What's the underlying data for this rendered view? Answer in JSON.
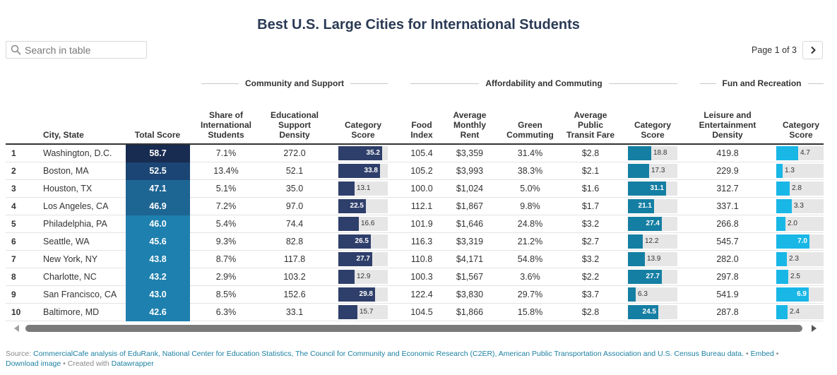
{
  "title": "Best U.S. Large Cities for International Students",
  "search": {
    "placeholder": "Search in table"
  },
  "pager": {
    "text": "Page 1 of 3"
  },
  "groups": {
    "community": "Community and Support",
    "afford": "Affordability and Commuting",
    "fun": "Fun and Recreation"
  },
  "headers": {
    "city": "City, State",
    "total": "Total Score",
    "share": "Share of International Students",
    "edu": "Educational Support Density",
    "cat1": "Category Score",
    "food": "Food Index",
    "rent": "Average Monthly Rent",
    "green": "Green Commuting",
    "fare": "Average Public Transit Fare",
    "cat2": "Category Score",
    "leisure": "Leisure and Entertainment Density",
    "cat3": "Category Score"
  },
  "rows": [
    {
      "rank": "1",
      "city": "Washington, D.C.",
      "total": "58.7",
      "share": "7.1%",
      "edu": "272.0",
      "cat1": 35.2,
      "food": "105.4",
      "rent": "$3,359",
      "green": "31.4%",
      "fare": "$2.8",
      "cat2": 18.8,
      "leisure": "419.8",
      "cat3": 4.7
    },
    {
      "rank": "2",
      "city": "Boston, MA",
      "total": "52.5",
      "share": "13.4%",
      "edu": "52.1",
      "cat1": 33.8,
      "food": "105.2",
      "rent": "$3,993",
      "green": "38.3%",
      "fare": "$2.1",
      "cat2": 17.3,
      "leisure": "229.9",
      "cat3": 1.3
    },
    {
      "rank": "3",
      "city": "Houston, TX",
      "total": "47.1",
      "share": "5.1%",
      "edu": "35.0",
      "cat1": 13.1,
      "food": "100.0",
      "rent": "$1,024",
      "green": "5.0%",
      "fare": "$1.6",
      "cat2": 31.1,
      "leisure": "312.7",
      "cat3": 2.8
    },
    {
      "rank": "4",
      "city": "Los Angeles, CA",
      "total": "46.9",
      "share": "7.2%",
      "edu": "97.0",
      "cat1": 22.5,
      "food": "112.1",
      "rent": "$1,867",
      "green": "9.8%",
      "fare": "$1.7",
      "cat2": 21.1,
      "leisure": "337.1",
      "cat3": 3.3
    },
    {
      "rank": "5",
      "city": "Philadelphia, PA",
      "total": "46.0",
      "share": "5.4%",
      "edu": "74.4",
      "cat1": 16.6,
      "food": "101.9",
      "rent": "$1,646",
      "green": "24.8%",
      "fare": "$3.2",
      "cat2": 27.4,
      "leisure": "266.8",
      "cat3": 2.0
    },
    {
      "rank": "6",
      "city": "Seattle, WA",
      "total": "45.6",
      "share": "9.3%",
      "edu": "82.8",
      "cat1": 26.5,
      "food": "116.3",
      "rent": "$3,319",
      "green": "21.2%",
      "fare": "$2.7",
      "cat2": 12.2,
      "leisure": "545.7",
      "cat3": 7.0
    },
    {
      "rank": "7",
      "city": "New York, NY",
      "total": "43.8",
      "share": "8.7%",
      "edu": "117.8",
      "cat1": 27.7,
      "food": "110.8",
      "rent": "$4,171",
      "green": "54.8%",
      "fare": "$3.2",
      "cat2": 13.9,
      "leisure": "282.0",
      "cat3": 2.3
    },
    {
      "rank": "8",
      "city": "Charlotte, NC",
      "total": "43.2",
      "share": "2.9%",
      "edu": "103.2",
      "cat1": 12.9,
      "food": "100.3",
      "rent": "$1,567",
      "green": "3.6%",
      "fare": "$2.2",
      "cat2": 27.7,
      "leisure": "297.8",
      "cat3": 2.5
    },
    {
      "rank": "9",
      "city": "San Francisco, CA",
      "total": "43.0",
      "share": "8.5%",
      "edu": "152.6",
      "cat1": 29.8,
      "food": "122.4",
      "rent": "$3,830",
      "green": "29.7%",
      "fare": "$3.7",
      "cat2": 6.3,
      "leisure": "541.9",
      "cat3": 6.9
    },
    {
      "rank": "10",
      "city": "Baltimore, MD",
      "total": "42.6",
      "share": "6.3%",
      "edu": "33.1",
      "cat1": 15.7,
      "food": "104.5",
      "rent": "$1,866",
      "green": "15.8%",
      "fare": "$2.8",
      "cat2": 24.5,
      "leisure": "287.8",
      "cat3": 2.4
    }
  ],
  "colors": {
    "cat1_bar": "#2f3f6b",
    "cat2_bar": "#157fa3",
    "cat3_bar": "#19b7e6",
    "total_scale": [
      "#182b50",
      "#1b4574",
      "#1d6593",
      "#1e80ae"
    ]
  },
  "footer": {
    "source_label": "Source:",
    "source_text": "CommercialCafe analysis of EduRank, National Center for Education Statistics, The Council for Community and Economic Research (C2ER), American Public Transportation Association and U.S. Census Bureau data.",
    "sep1": "•",
    "embed": "Embed",
    "sep2": "•",
    "download": "Download image",
    "created": "• Created with",
    "datawrapper": "Datawrapper"
  }
}
